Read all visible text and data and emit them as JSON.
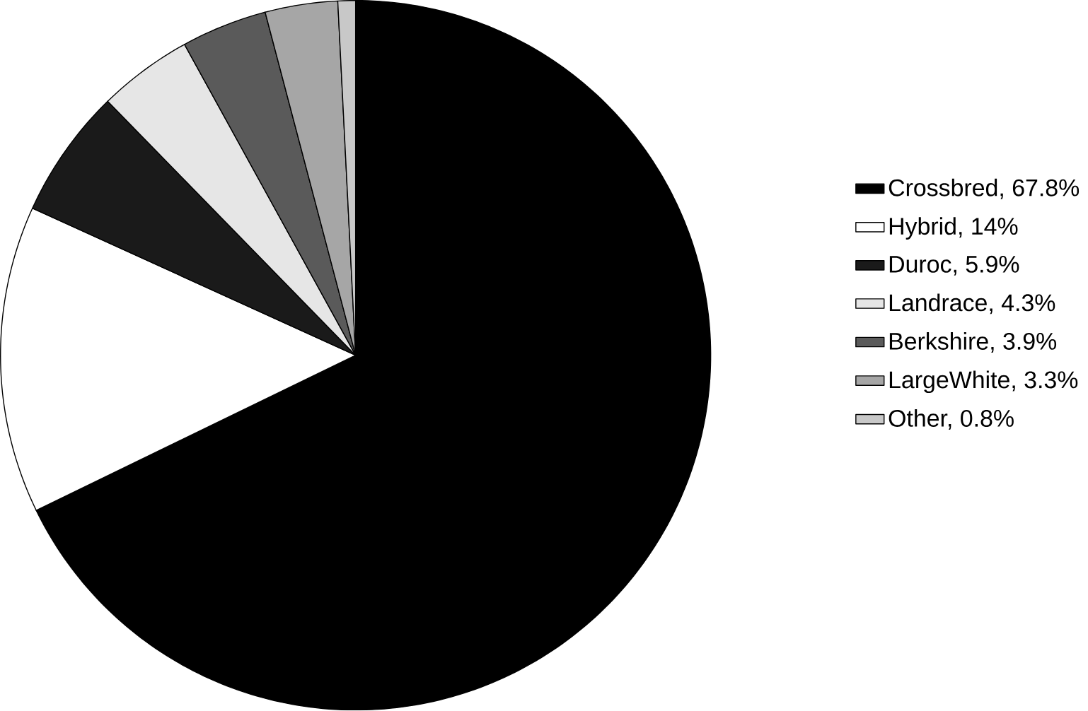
{
  "chart_data": {
    "type": "pie",
    "categories": [
      "Crossbred, 67.8%",
      "Hybrid, 14%",
      "Duroc, 5.9%",
      "Landrace, 4.3%",
      "Berkshire, 3.9%",
      "LargeWhite, 3.3%",
      "Other, 0.8%"
    ],
    "values": [
      67.8,
      14,
      5.9,
      4.3,
      3.9,
      3.3,
      0.8
    ],
    "colors": [
      "#000000",
      "#ffffff",
      "#1a1a1a",
      "#e6e6e6",
      "#5a5a5a",
      "#a6a6a6",
      "#c8c8c8"
    ],
    "legend": "right"
  }
}
